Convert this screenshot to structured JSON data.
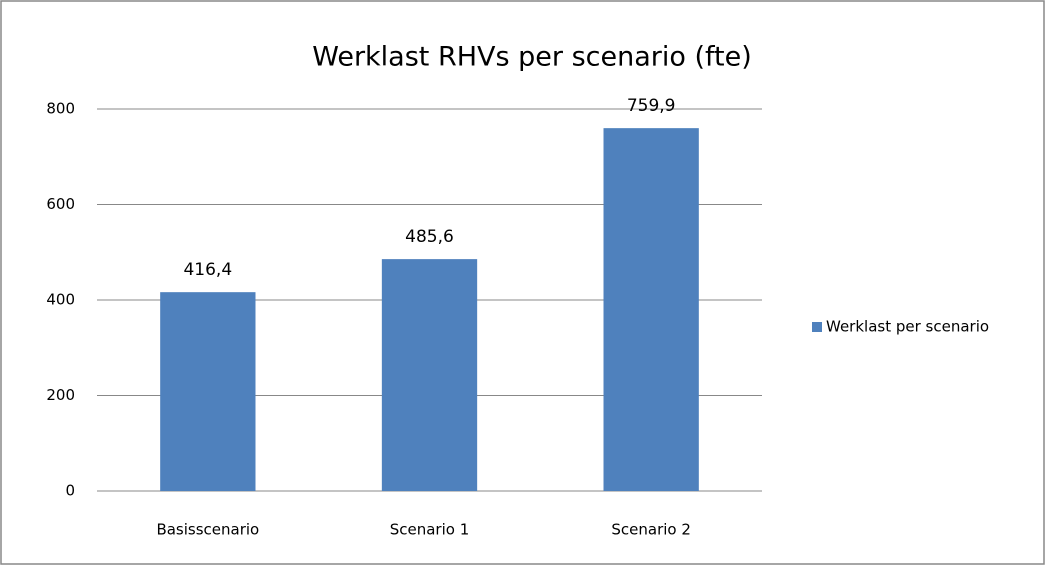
{
  "chart_data": {
    "type": "bar",
    "title": "Werklast RHVs per scenario (fte)",
    "categories": [
      "Basisscenario",
      "Scenario 1",
      "Scenario 2"
    ],
    "series": [
      {
        "name": "Werklast per scenario",
        "color": "#4f81bd",
        "values": [
          416.4,
          485.6,
          759.9
        ],
        "value_labels": [
          "416,4",
          "485,6",
          "759,9"
        ]
      }
    ],
    "ylim": [
      0,
      800
    ],
    "yticks": [
      0,
      200,
      400,
      600,
      800
    ],
    "grid": true,
    "legend": "right"
  }
}
